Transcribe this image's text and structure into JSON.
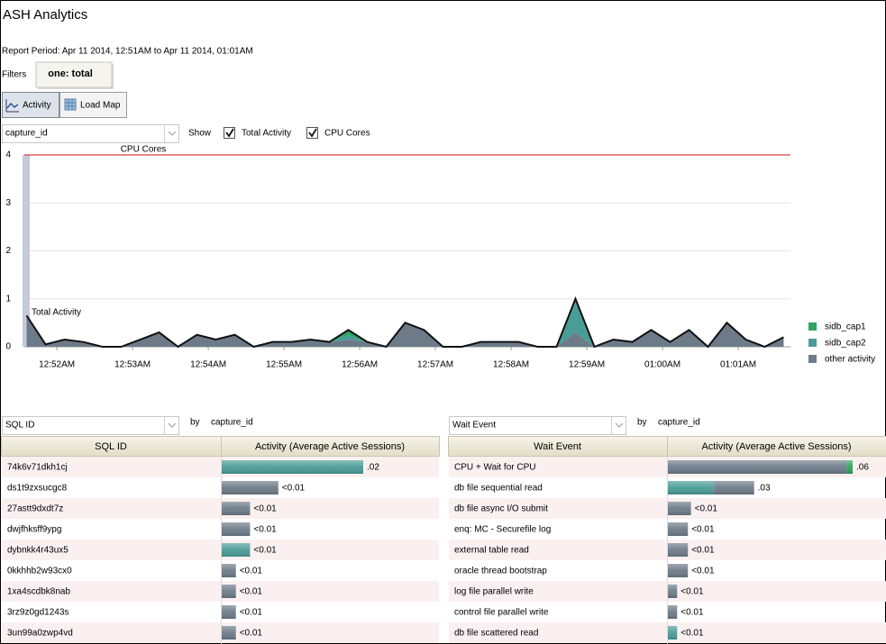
{
  "header": {
    "title": "ASH Analytics",
    "report_period": "Report Period: Apr 11 2014, 12:51AM to Apr 11 2014, 01:01AM",
    "filters_label": "Filters",
    "filter_chip": "one: total"
  },
  "toolbar": {
    "tabs": [
      "Activity",
      "Load Map"
    ],
    "dimension_select": "capture_id",
    "show_label": "Show",
    "checkboxes": [
      {
        "label": "Total Activity",
        "checked": true
      },
      {
        "label": "CPU Cores",
        "checked": true
      }
    ]
  },
  "chart_data": {
    "type": "stacked-area",
    "cpu_cores": 4,
    "cpu_cores_label": "CPU Cores",
    "total_label": "Total Activity",
    "x": [
      51.6,
      51.85,
      52.1,
      52.35,
      52.6,
      52.85,
      53.1,
      53.35,
      53.6,
      53.85,
      54.1,
      54.35,
      54.6,
      54.85,
      55.1,
      55.35,
      55.6,
      55.85,
      56.1,
      56.35,
      56.6,
      56.85,
      57.1,
      57.35,
      57.6,
      57.85,
      58.1,
      58.35,
      58.6,
      58.85,
      59.1,
      59.35,
      59.6,
      59.85,
      60.1,
      60.35,
      60.6,
      60.85,
      61.1,
      61.35,
      61.6
    ],
    "xlim": [
      51.57,
      61.69
    ],
    "xticks": [
      {
        "value": 52,
        "label": "12:52AM"
      },
      {
        "value": 53,
        "label": "12:53AM"
      },
      {
        "value": 54,
        "label": "12:54AM"
      },
      {
        "value": 55,
        "label": "12:55AM"
      },
      {
        "value": 56,
        "label": "12:56AM"
      },
      {
        "value": 57,
        "label": "12:57AM"
      },
      {
        "value": 58,
        "label": "12:58AM"
      },
      {
        "value": 59,
        "label": "12:59AM"
      },
      {
        "value": 60,
        "label": "01:00AM"
      },
      {
        "value": 61,
        "label": "01:01AM"
      }
    ],
    "ylim": [
      0,
      4
    ],
    "yticks": [
      0,
      1,
      2,
      3,
      4
    ],
    "grid": true,
    "series": [
      {
        "name": "sidb_cap1",
        "color": "#2ea55c",
        "values": [
          0,
          0,
          0,
          0,
          0,
          0,
          0,
          0,
          0,
          0,
          0,
          0,
          0,
          0,
          0,
          0,
          0,
          0.1,
          0,
          0,
          0,
          0,
          0,
          0,
          0,
          0,
          0,
          0,
          0,
          0,
          0,
          0,
          0,
          0,
          0,
          0,
          0,
          0,
          0,
          0,
          0
        ]
      },
      {
        "name": "sidb_cap2",
        "color": "#4a9c97",
        "values": [
          0,
          0,
          0,
          0,
          0,
          0,
          0,
          0,
          0,
          0,
          0,
          0,
          0,
          0,
          0,
          0,
          0,
          0.1,
          0,
          0,
          0,
          0,
          0,
          0,
          0,
          0,
          0,
          0,
          0,
          0.7,
          0,
          0,
          0,
          0,
          0,
          0,
          0,
          0,
          0,
          0,
          0
        ]
      },
      {
        "name": "other activity",
        "color": "#6d7b89",
        "values": [
          0.65,
          0.05,
          0.15,
          0.1,
          0,
          0,
          0.15,
          0.3,
          0,
          0.25,
          0.15,
          0.25,
          0,
          0.1,
          0.1,
          0.15,
          0.1,
          0.15,
          0.1,
          0,
          0.5,
          0.35,
          0,
          0,
          0.1,
          0.1,
          0.1,
          0,
          0,
          0.3,
          0,
          0.15,
          0.1,
          0.35,
          0.1,
          0.35,
          0,
          0.5,
          0.15,
          0,
          0.2
        ]
      }
    ]
  },
  "sql_panel": {
    "dimension_select": "SQL ID",
    "by_label": "by",
    "by_value": "capture_id",
    "columns": [
      "SQL ID",
      "Activity (Average Active Sessions)"
    ],
    "rows": [
      {
        "name": "74k6v71dkh1cj",
        "value_label": ".02",
        "values": [
          0,
          0.02,
          0
        ]
      },
      {
        "name": "ds1t9zxsucgc8",
        "value_label": "<0.01",
        "values": [
          0,
          0,
          0.008
        ]
      },
      {
        "name": "27astt9dxdt7z",
        "value_label": "<0.01",
        "values": [
          0,
          0,
          0.004
        ]
      },
      {
        "name": "dwjfhksff9ypg",
        "value_label": "<0.01",
        "values": [
          0,
          0,
          0.004
        ]
      },
      {
        "name": "dybnkk4r43ux5",
        "value_label": "<0.01",
        "values": [
          0,
          0.004,
          0
        ]
      },
      {
        "name": "0kkhhb2w93cx0",
        "value_label": "<0.01",
        "values": [
          0,
          0,
          0.002
        ]
      },
      {
        "name": "1xa4scdbk8nab",
        "value_label": "<0.01",
        "values": [
          0,
          0,
          0.002
        ]
      },
      {
        "name": "3rz9z0gd1243s",
        "value_label": "<0.01",
        "values": [
          0,
          0,
          0.002
        ]
      },
      {
        "name": "3un99a0zwp4vd",
        "value_label": "<0.01",
        "values": [
          0,
          0,
          0.002
        ]
      }
    ]
  },
  "wait_panel": {
    "dimension_select": "Wait Event",
    "by_label": "by",
    "by_value": "capture_id",
    "columns": [
      "Wait Event",
      "Activity (Average Active Sessions)"
    ],
    "rows": [
      {
        "name": "CPU + Wait for CPU",
        "value_label": ".06",
        "values": [
          0.002,
          0,
          0.058
        ]
      },
      {
        "name": "db file sequential read",
        "value_label": ".03",
        "values": [
          0,
          0.015,
          0.013
        ]
      },
      {
        "name": "db file async I/O submit",
        "value_label": "<0.01",
        "values": [
          0,
          0,
          0.0075
        ]
      },
      {
        "name": "enq: MC - Securefile log",
        "value_label": "<0.01",
        "values": [
          0,
          0,
          0.0065
        ]
      },
      {
        "name": "external table read",
        "value_label": "<0.01",
        "values": [
          0,
          0,
          0.0065
        ]
      },
      {
        "name": "oracle thread bootstrap",
        "value_label": "<0.01",
        "values": [
          0,
          0,
          0.0065
        ]
      },
      {
        "name": "log file parallel write",
        "value_label": "<0.01",
        "values": [
          0,
          0,
          0.003
        ]
      },
      {
        "name": "control file parallel write",
        "value_label": "<0.01",
        "values": [
          0,
          0,
          0.003
        ]
      },
      {
        "name": "db file scattered read",
        "value_label": "<0.01",
        "values": [
          0,
          0.003,
          0
        ]
      }
    ]
  }
}
